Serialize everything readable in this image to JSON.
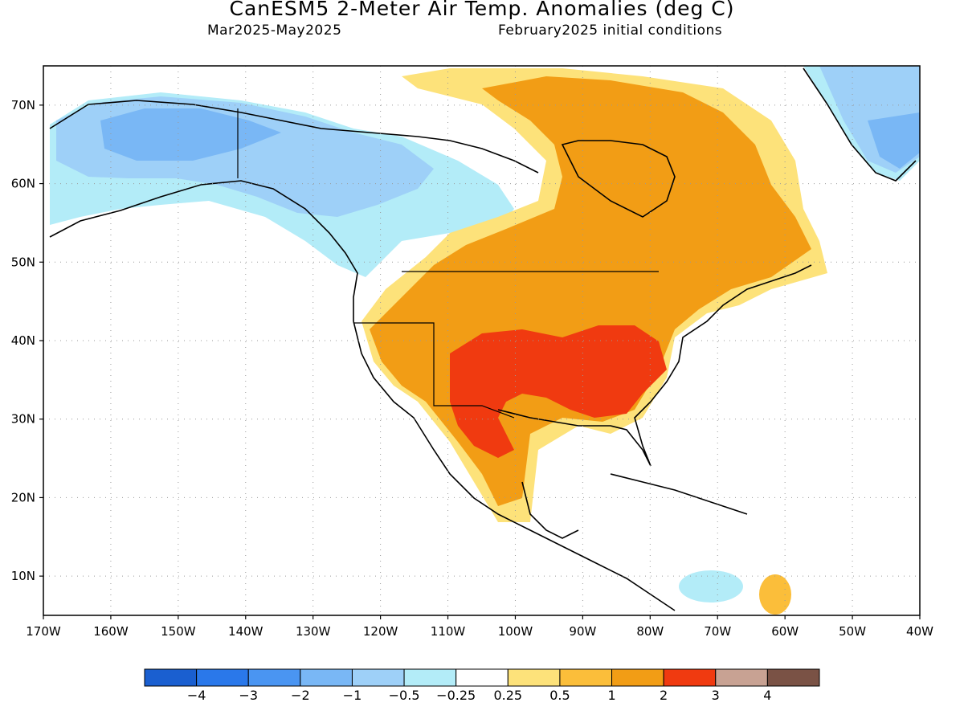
{
  "header": {
    "title": "CanESM5 2-Meter Air Temp. Anomalies (deg C)",
    "period": "Mar2025-May2025",
    "init": "February2025 initial conditions"
  },
  "axes": {
    "lon_labels": [
      "170W",
      "160W",
      "150W",
      "140W",
      "130W",
      "120W",
      "110W",
      "100W",
      "90W",
      "80W",
      "70W",
      "60W",
      "50W",
      "40W"
    ],
    "lon_values": [
      -170,
      -160,
      -150,
      -140,
      -130,
      -120,
      -110,
      -100,
      -90,
      -80,
      -70,
      -60,
      -50,
      -40
    ],
    "lat_labels": [
      "10N",
      "20N",
      "30N",
      "40N",
      "50N",
      "60N",
      "70N"
    ],
    "lat_values": [
      10,
      20,
      30,
      40,
      50,
      60,
      70
    ],
    "lon_range": [
      -170,
      -40
    ],
    "lat_range": [
      5,
      75
    ],
    "grid": "dotted"
  },
  "colorbar": {
    "colors": [
      "#1a5fd0",
      "#2a78ea",
      "#4a95f2",
      "#79b7f5",
      "#9ed0f8",
      "#b3ecf8",
      "#ffffff",
      "#fde27a",
      "#fbbe3a",
      "#f29d15",
      "#f03a10",
      "#c8a293",
      "#7a5245"
    ],
    "labels": [
      "−4",
      "−3",
      "−2",
      "−1",
      "−0.5",
      "−0.25",
      "0.25",
      "0.5",
      "1",
      "2",
      "3",
      "4"
    ]
  },
  "chart_data": {
    "type": "heatmap",
    "variable": "2-Meter Air Temp. Anomalies (deg C)",
    "regions": [
      {
        "area": "Alaska and western Canada",
        "category": "-1 to -0.5"
      },
      {
        "area": "Central Alaska",
        "category": "-2 to -1"
      },
      {
        "area": "Greenland",
        "category": "-2 to -0.5"
      },
      {
        "area": "Southwestern and central United States",
        "category": "1 to 2"
      },
      {
        "area": "Texas, Oklahoma, Ohio and Tennessee valleys",
        "category": "2 to 3"
      },
      {
        "area": "Eastern Canada and Hudson Bay region",
        "category": "1 to 2"
      },
      {
        "area": "Northern Mexico",
        "category": "1 to 2"
      },
      {
        "area": "Canadian Arctic Archipelago",
        "category": "0.5 to 2"
      },
      {
        "area": "Caribbean near Hispaniola",
        "category": "-0.5 to -0.25"
      }
    ]
  }
}
